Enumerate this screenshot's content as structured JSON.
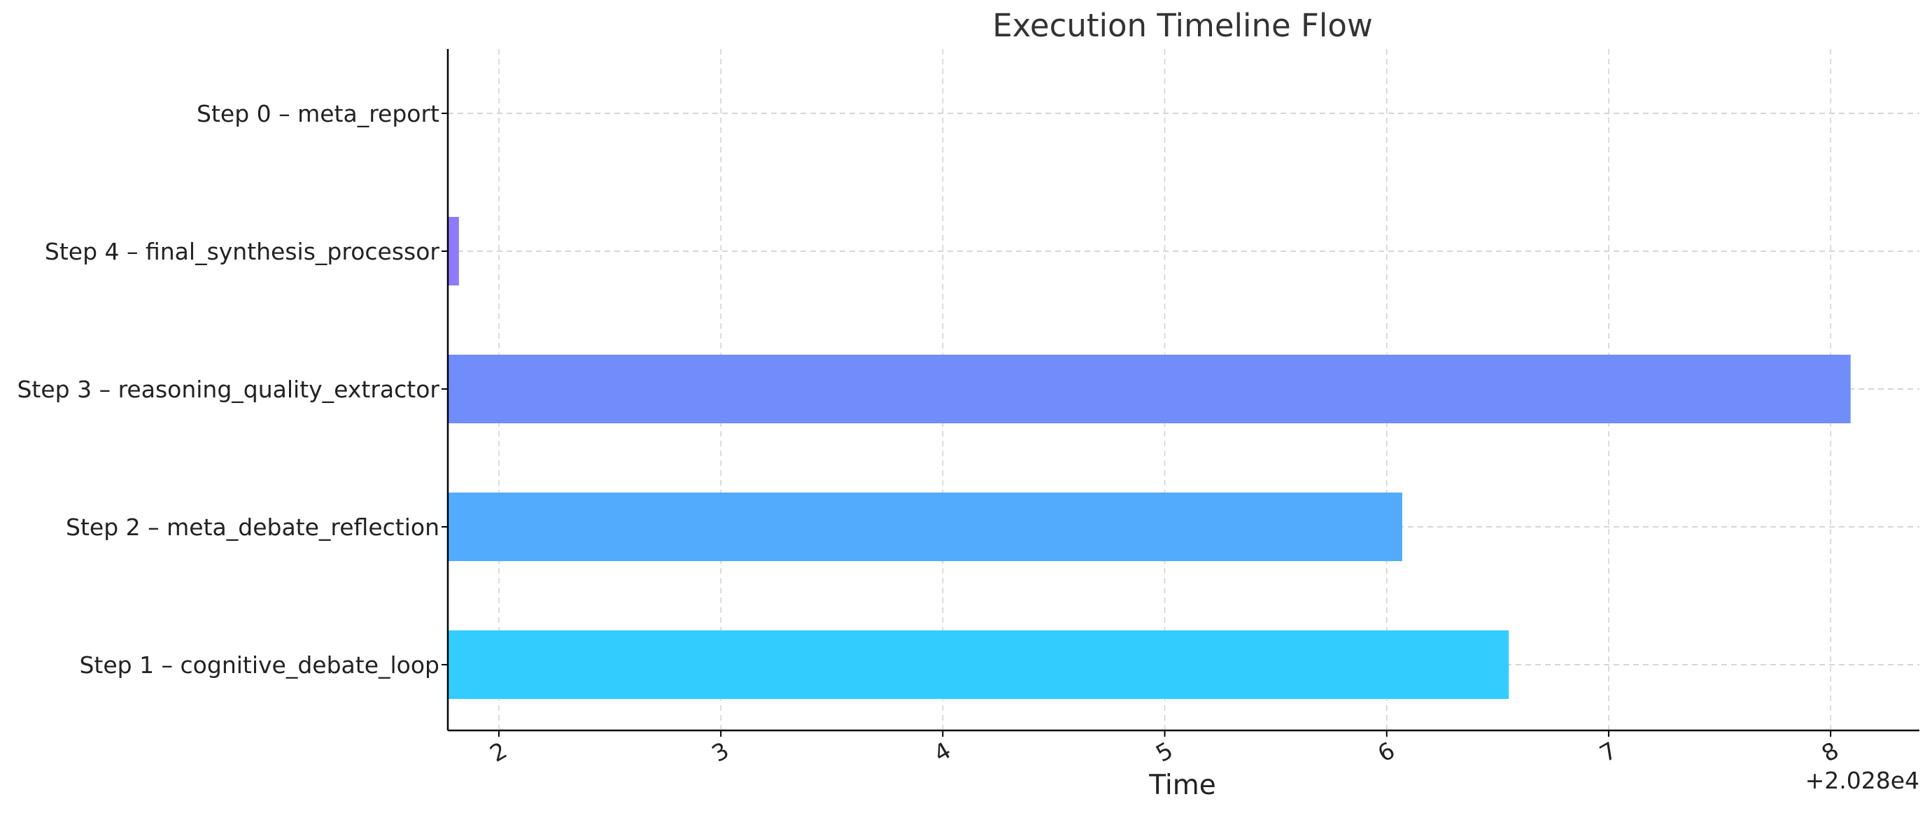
{
  "chart_data": {
    "type": "bar",
    "orientation": "horizontal",
    "title": "Execution Timeline Flow",
    "xlabel": "Time",
    "ylabel": "",
    "x_offset_label": "+2.028e4",
    "x_ticks": [
      "2",
      "3",
      "4",
      "5",
      "6",
      "7",
      "8"
    ],
    "x_tick_values": [
      2,
      3,
      4,
      5,
      6,
      7,
      8
    ],
    "xlim": [
      1.77,
      8.4
    ],
    "grid": true,
    "legend": "none",
    "categories": [
      "Step 1 – cognitive_debate_loop",
      "Step 2 – meta_debate_reflection",
      "Step 3 – reasoning_quality_extractor",
      "Step 4 – final_synthesis_processor",
      "Step 0 – meta_report"
    ],
    "bars": [
      {
        "start": 1.77,
        "end": 6.55,
        "color": "#33ccff"
      },
      {
        "start": 1.77,
        "end": 6.07,
        "color": "#52abfd"
      },
      {
        "start": 1.77,
        "end": 8.09,
        "color": "#708dfb"
      },
      {
        "start": 1.77,
        "end": 1.82,
        "color": "#8f7af8"
      },
      {
        "start": 1.77,
        "end": 1.77,
        "color": "#a066f5"
      }
    ]
  }
}
